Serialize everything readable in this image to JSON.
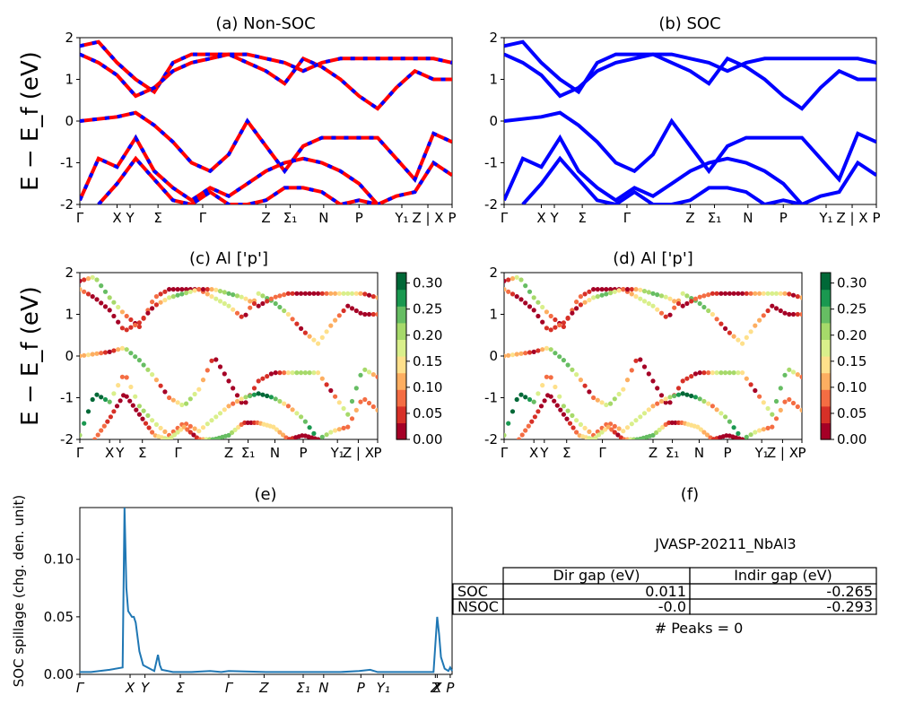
{
  "figure": {
    "ylabel": "E − E_f (eV)",
    "kpath_labels": [
      "Γ",
      "X",
      "Y",
      "Σ",
      "Γ",
      "Z",
      "Σ₁",
      "N",
      "P",
      "Y₁",
      "Z | X",
      "P"
    ]
  },
  "colors": {
    "nonsoc_line": "#ff0000",
    "nonsoc_dash": "#0000ff",
    "soc_line": "#0000ff",
    "spillage_line": "#1f77b4",
    "colormap": [
      "#a50026",
      "#d73027",
      "#f46d43",
      "#fdae61",
      "#fee08b",
      "#d9ef8b",
      "#a6d96a",
      "#66bd63",
      "#1a9850",
      "#006837"
    ]
  },
  "panels": {
    "a": {
      "title": "(a) Non-SOC"
    },
    "b": {
      "title": "(b) SOC"
    },
    "c": {
      "title": "(c)  Al ['p']",
      "colorbar_ticks": [
        "0.00",
        "0.05",
        "0.10",
        "0.15",
        "0.20",
        "0.25",
        "0.30"
      ]
    },
    "d": {
      "title": "(d) Al ['p']",
      "colorbar_ticks": [
        "0.00",
        "0.05",
        "0.10",
        "0.15",
        "0.20",
        "0.25",
        "0.30"
      ]
    },
    "e": {
      "title": "(e)",
      "ylabel": "SOC spillage (chg. den. unit)",
      "xticks": [
        "Γ",
        "X",
        "Y",
        "Σ",
        "Γ",
        "Z",
        "Σ₁",
        "N",
        "P",
        "Y₁",
        "Z",
        "X",
        "P"
      ]
    },
    "f": {
      "title": "(f)",
      "id_text": "JVASP-20211_NbAl3",
      "table": {
        "headers": [
          "Dir gap (eV)",
          "Indir gap (eV)"
        ],
        "rows": [
          {
            "label": "SOC",
            "dir": "0.011",
            "indir": "-0.265"
          },
          {
            "label": "NSOC",
            "dir": "-0.0",
            "indir": "-0.293"
          }
        ]
      },
      "peaks_text": "# Peaks = 0"
    }
  },
  "chart_data": [
    {
      "type": "line",
      "title": "(a) Non-SOC",
      "ylabel": "E − E_f (eV)",
      "ylim": [
        -2,
        2
      ],
      "yticks": [
        -2,
        -1,
        0,
        1,
        2
      ],
      "note": "band structure, red solid with blue dashes",
      "series": [
        {
          "x": [
            0,
            0.05,
            0.1,
            0.15,
            0.2,
            0.25,
            0.3,
            0.35,
            0.4,
            0.45,
            0.5,
            0.55,
            0.6,
            0.65,
            0.7,
            0.75,
            0.8,
            0.85,
            0.9,
            0.95,
            1.0
          ],
          "y": [
            1.8,
            1.9,
            1.4,
            1.0,
            0.7,
            1.4,
            1.6,
            1.6,
            1.6,
            1.4,
            1.2,
            0.9,
            1.5,
            1.3,
            1.0,
            0.6,
            0.3,
            0.8,
            1.2,
            1.0,
            1.0
          ]
        },
        {
          "x": [
            0,
            0.05,
            0.1,
            0.15,
            0.2,
            0.25,
            0.3,
            0.35,
            0.4,
            0.45,
            0.5,
            0.55,
            0.6,
            0.65,
            0.7,
            0.75,
            0.8,
            0.85,
            0.9,
            0.95,
            1.0
          ],
          "y": [
            1.6,
            1.4,
            1.1,
            0.6,
            0.8,
            1.2,
            1.4,
            1.5,
            1.6,
            1.6,
            1.5,
            1.4,
            1.2,
            1.4,
            1.5,
            1.5,
            1.5,
            1.5,
            1.5,
            1.5,
            1.4
          ]
        },
        {
          "x": [
            0,
            0.1,
            0.15,
            0.2,
            0.25,
            0.3,
            0.35,
            0.4,
            0.45,
            0.5,
            0.55,
            0.6,
            0.65,
            0.7,
            0.75,
            0.8,
            0.85,
            0.9,
            0.95,
            1.0
          ],
          "y": [
            0.0,
            0.1,
            0.2,
            -0.1,
            -0.5,
            -1.0,
            -1.2,
            -0.8,
            0.0,
            -0.6,
            -1.2,
            -0.6,
            -0.4,
            -0.4,
            -0.4,
            -0.4,
            -0.9,
            -1.4,
            -0.3,
            -0.5
          ]
        },
        {
          "x": [
            0,
            0.05,
            0.1,
            0.15,
            0.2,
            0.25,
            0.3,
            0.35,
            0.4,
            0.45,
            0.5,
            0.55,
            0.6,
            0.65,
            0.7,
            0.75,
            0.8,
            0.85,
            0.9,
            0.95,
            1.0
          ],
          "y": [
            -1.9,
            -0.9,
            -1.1,
            -0.4,
            -1.2,
            -1.6,
            -1.9,
            -1.6,
            -1.8,
            -1.5,
            -1.2,
            -1.0,
            -0.9,
            -1.0,
            -1.2,
            -1.5,
            -2.0,
            -1.8,
            -1.7,
            -1.0,
            -1.3
          ]
        },
        {
          "x": [
            0.05,
            0.1,
            0.15,
            0.2,
            0.25,
            0.3,
            0.35,
            0.4,
            0.45,
            0.5,
            0.55,
            0.6,
            0.65,
            0.7,
            0.75,
            0.8
          ],
          "y": [
            -2.0,
            -1.5,
            -0.9,
            -1.4,
            -1.9,
            -2.0,
            -1.7,
            -2.0,
            -2.0,
            -1.9,
            -1.6,
            -1.6,
            -1.7,
            -2.0,
            -1.9,
            -2.0
          ]
        }
      ]
    },
    {
      "type": "line",
      "title": "(b) SOC",
      "ylim": [
        -2,
        2
      ],
      "yticks": [
        -2,
        -1,
        0,
        1,
        2
      ],
      "note": "band structure, blue",
      "series_same_as": "a"
    },
    {
      "type": "scatter",
      "title": "(c)  Al ['p']",
      "ylim": [
        -2,
        2
      ],
      "colorbar_range": [
        0.0,
        0.32
      ],
      "note": "bands colored by Al p projection"
    },
    {
      "type": "scatter",
      "title": "(d) Al ['p']",
      "ylim": [
        -2,
        2
      ],
      "colorbar_range": [
        0.0,
        0.32
      ],
      "note": "bands colored by Al p projection"
    },
    {
      "type": "line",
      "title": "(e)",
      "ylabel": "SOC spillage (chg. den. unit)",
      "ylim": [
        0,
        0.145
      ],
      "yticks": [
        "0.00",
        "0.05",
        "0.10"
      ],
      "series": [
        {
          "x": [
            0,
            0.03,
            0.08,
            0.115,
            0.12,
            0.125,
            0.13,
            0.14,
            0.145,
            0.15,
            0.16,
            0.17,
            0.2,
            0.21,
            0.215,
            0.22,
            0.25,
            0.3,
            0.35,
            0.38,
            0.4,
            0.5,
            0.6,
            0.7,
            0.75,
            0.78,
            0.8,
            0.9,
            0.95,
            0.96,
            0.965,
            0.97,
            0.98,
            0.99,
            0.995,
            1.0
          ],
          "y": [
            0.002,
            0.002,
            0.004,
            0.006,
            0.145,
            0.075,
            0.055,
            0.05,
            0.05,
            0.045,
            0.02,
            0.008,
            0.003,
            0.017,
            0.008,
            0.004,
            0.002,
            0.002,
            0.003,
            0.002,
            0.003,
            0.002,
            0.002,
            0.002,
            0.003,
            0.004,
            0.002,
            0.002,
            0.002,
            0.05,
            0.035,
            0.015,
            0.005,
            0.003,
            0.006,
            0.003
          ]
        }
      ]
    }
  ]
}
